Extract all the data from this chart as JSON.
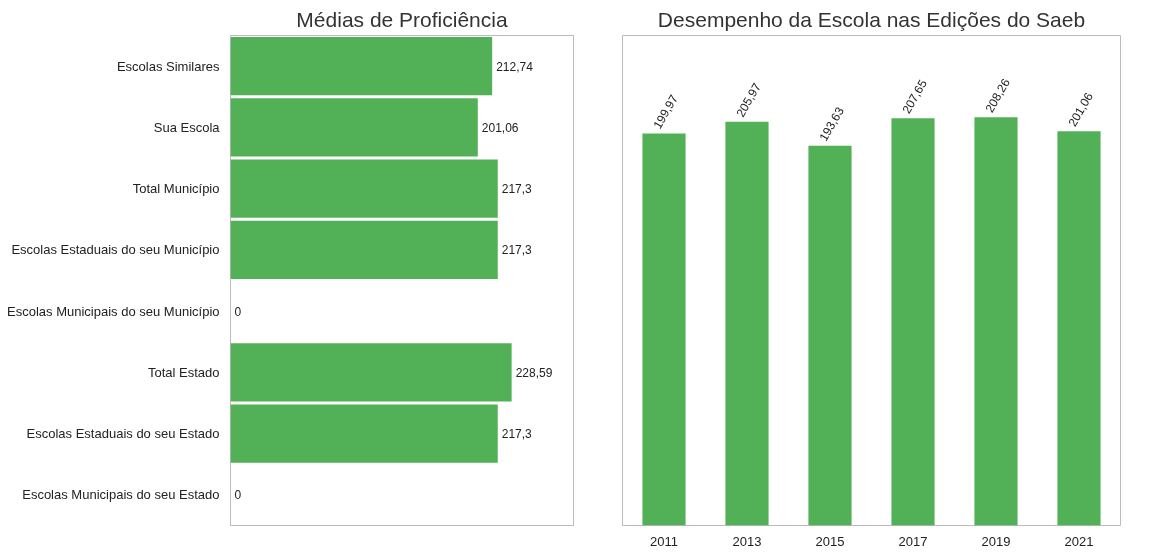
{
  "chart_data": [
    {
      "type": "bar",
      "orientation": "horizontal",
      "title": "Médias de Proficiência",
      "categories": [
        "Escolas Similares",
        "Sua Escola",
        "Total Município",
        "Escolas Estaduais do seu Município",
        "Escolas Municipais do seu Município",
        "Total Estado",
        "Escolas Estaduais do seu Estado",
        "Escolas Municipais do seu Estado"
      ],
      "values": [
        212.74,
        201.06,
        217.3,
        217.3,
        0,
        228.59,
        217.3,
        0
      ],
      "value_labels": [
        "212,74",
        "201,06",
        "217,3",
        "217,3",
        "0",
        "228,59",
        "217,3",
        "0"
      ],
      "color": "#52b156",
      "tick_labels": "y"
    },
    {
      "type": "bar",
      "title": "Desempenho da Escola nas Edições do Saeb",
      "categories": [
        "2011",
        "2013",
        "2015",
        "2017",
        "2019",
        "2021"
      ],
      "values": [
        199.97,
        205.97,
        193.63,
        207.65,
        208.26,
        201.06
      ],
      "value_labels": [
        "199,97",
        "205,97",
        "193,63",
        "207,65",
        "208,26",
        "201,06"
      ],
      "color": "#52b156",
      "tick_labels": "x"
    }
  ]
}
